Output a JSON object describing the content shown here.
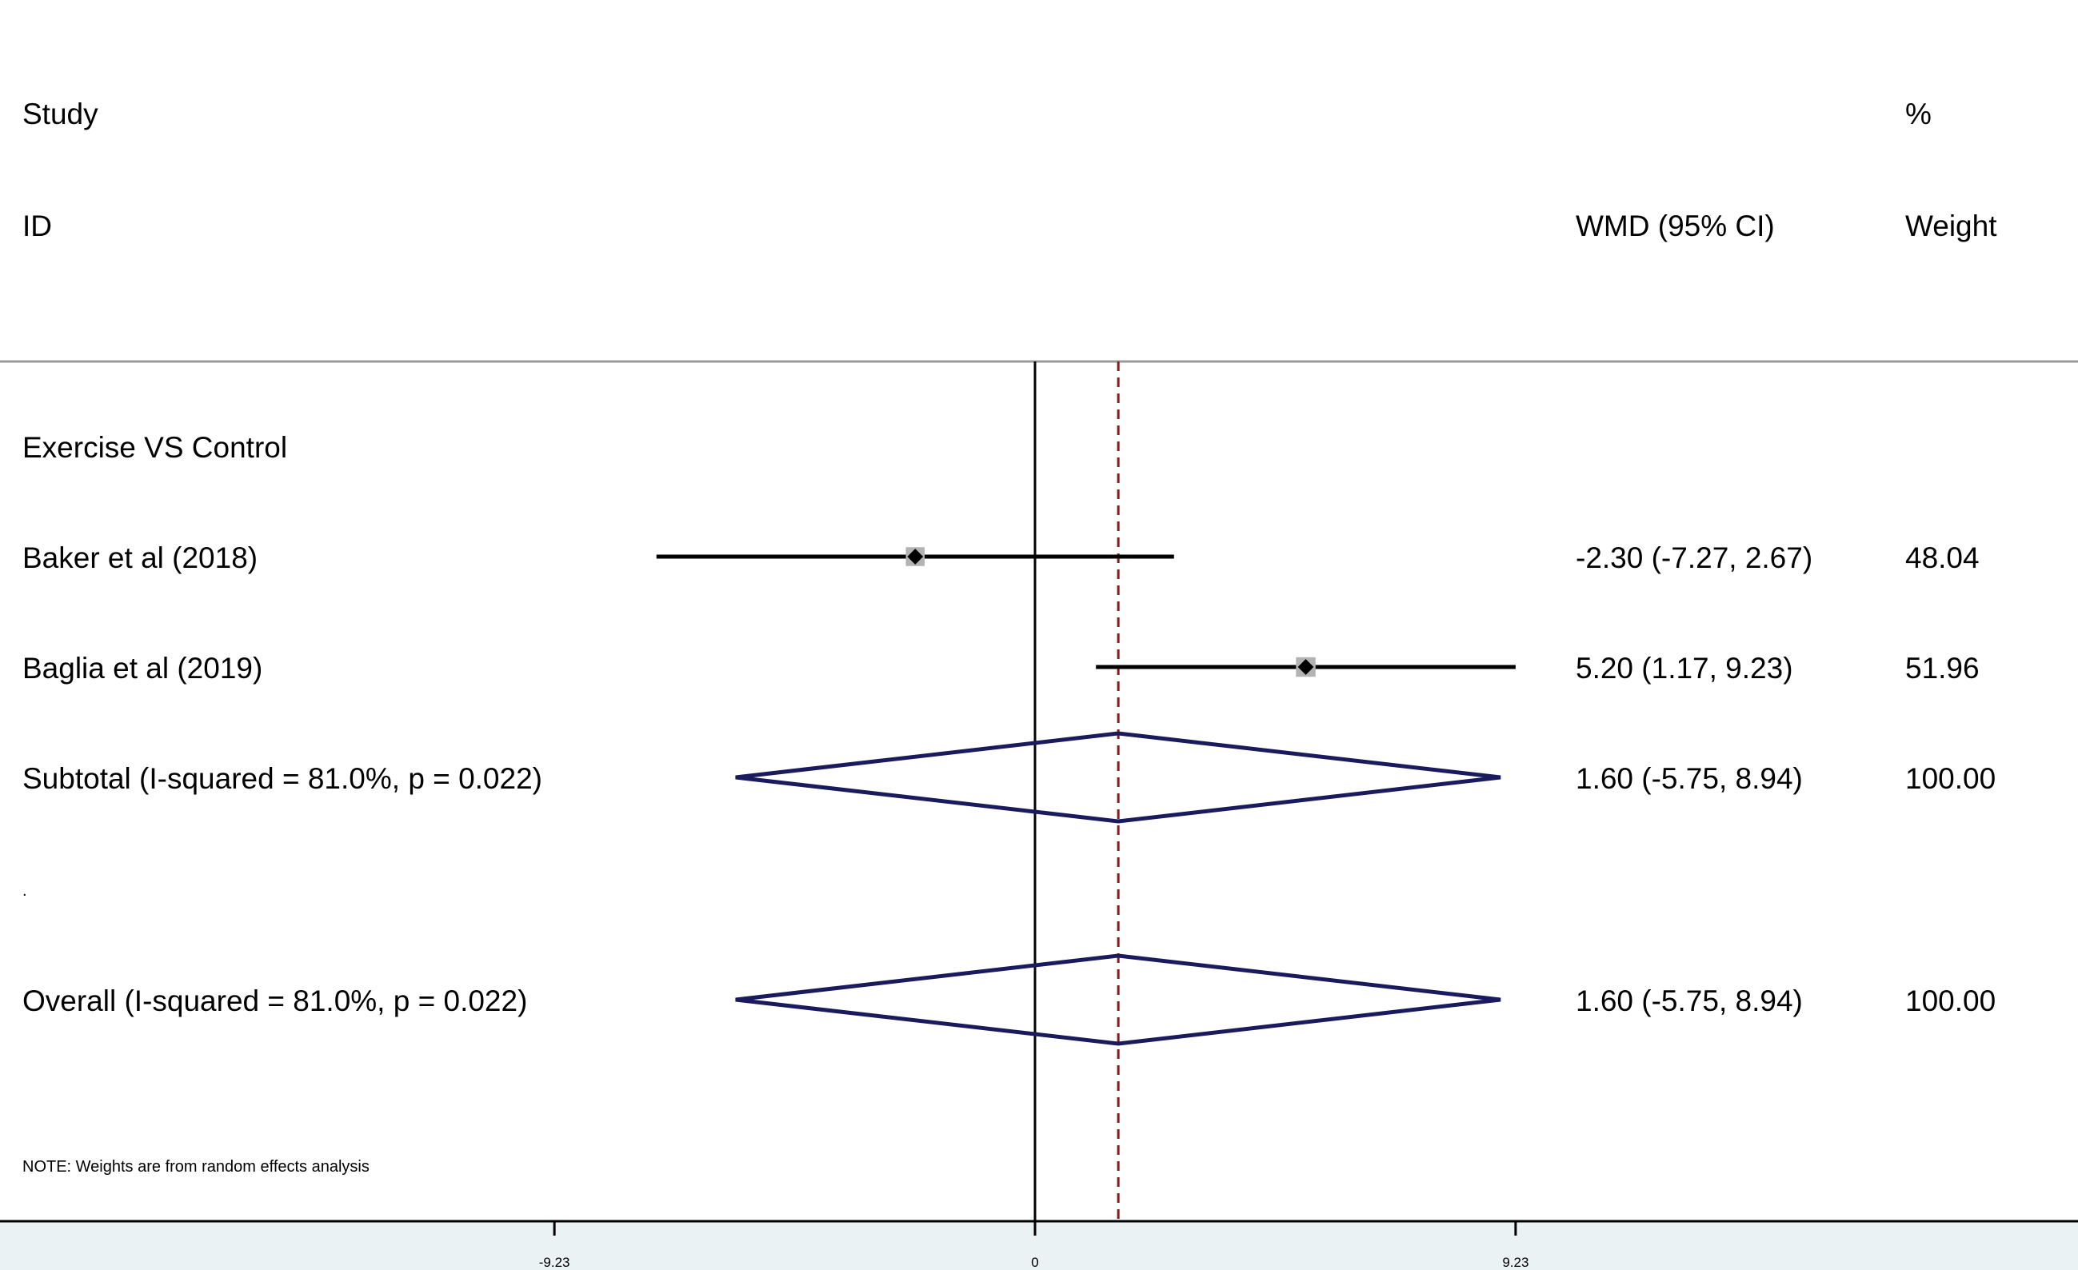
{
  "chart_data": {
    "type": "forest",
    "headers": {
      "study_line1": "Study",
      "study_line2": "ID",
      "estimate": "WMD (95% CI)",
      "weight_line1": "%",
      "weight_line2": "Weight"
    },
    "group_label": "Exercise VS Control",
    "studies": [
      {
        "label": "Baker et al (2018)",
        "estimate": -2.3,
        "ci_low": -7.27,
        "ci_high": 2.67,
        "weight": 48.04,
        "estimate_text": "-2.30 (-7.27, 2.67)",
        "weight_text": "48.04"
      },
      {
        "label": "Baglia et al (2019)",
        "estimate": 5.2,
        "ci_low": 1.17,
        "ci_high": 9.23,
        "weight": 51.96,
        "estimate_text": "5.20 (1.17, 9.23)",
        "weight_text": "51.96"
      }
    ],
    "subtotal": {
      "label": "Subtotal  (I-squared = 81.0%, p = 0.022)",
      "estimate": 1.6,
      "ci_low": -5.75,
      "ci_high": 8.94,
      "estimate_text": "1.60 (-5.75, 8.94)",
      "weight_text": "100.00"
    },
    "overall": {
      "label": "Overall  (I-squared = 81.0%, p = 0.022)",
      "estimate": 1.6,
      "ci_low": -5.75,
      "ci_high": 8.94,
      "estimate_text": "1.60 (-5.75, 8.94)",
      "weight_text": "100.00"
    },
    "separator_mark": ".",
    "note": "NOTE: Weights are from random effects analysis",
    "x_axis": {
      "ticks": [
        -9.23,
        0,
        9.23
      ],
      "tick_labels": [
        "-9.23",
        "0",
        "9.23"
      ],
      "xlim": [
        -18.1,
        18.1
      ],
      "null_line": 0,
      "pooled_reference_line": 1.6
    },
    "colors": {
      "ci_line": "#000000",
      "marker_box": "#b3b3b3",
      "diamond": "#1a1a5e",
      "pooled_line": "#8b1a1a",
      "axis_band": "#eaf2f3",
      "header_rule": "#9a9a9a"
    }
  }
}
